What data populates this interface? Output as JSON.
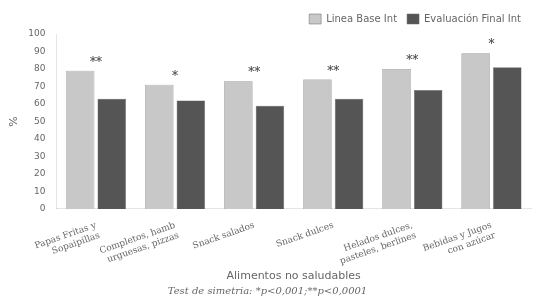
{
  "chart_data": {
    "type": "bar",
    "categories": [
      "Papas Fritas y\nSopaipillas",
      "Completos, hamb\nurguesas, pizzas",
      "Snack salados",
      "Snack dulces",
      "Helados dulces,\npasteles, berlines",
      "Bebidas y Jugos\ncon azúcar"
    ],
    "series": [
      {
        "name": "Linea Base Int",
        "color": "#c8c8c8",
        "values": [
          79,
          71,
          73,
          74,
          80,
          89
        ]
      },
      {
        "name": "Evaluación Final Int",
        "color": "#555555",
        "values": [
          63,
          62,
          59,
          63,
          68,
          81
        ]
      }
    ],
    "annotations": [
      "**",
      "*",
      "**",
      "**",
      "**",
      "*"
    ],
    "xlabel": "Alimentos no saludables",
    "ylabel": "%",
    "subtitle": "Test de simetria: *p<0,001;**p<0,0001",
    "ylim": [
      0,
      100
    ],
    "yticks": [
      0,
      10,
      20,
      30,
      40,
      50,
      60,
      70,
      80,
      90,
      100
    ],
    "grid": false,
    "legend": "upper right"
  }
}
